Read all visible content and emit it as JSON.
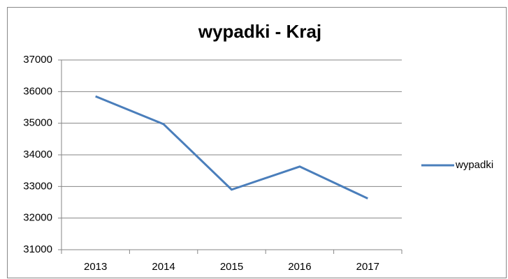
{
  "chart_data": {
    "type": "line",
    "title": "wypadki - Kraj",
    "categories": [
      "2013",
      "2014",
      "2015",
      "2016",
      "2017"
    ],
    "series": [
      {
        "name": "wypadki",
        "color": "#4a7ebb",
        "values": [
          35850,
          34970,
          32900,
          33630,
          32620
        ]
      }
    ],
    "ylim": [
      31000,
      37000
    ],
    "yticks": [
      31000,
      32000,
      33000,
      34000,
      35000,
      36000,
      37000
    ],
    "grid": true,
    "legend": "right"
  }
}
